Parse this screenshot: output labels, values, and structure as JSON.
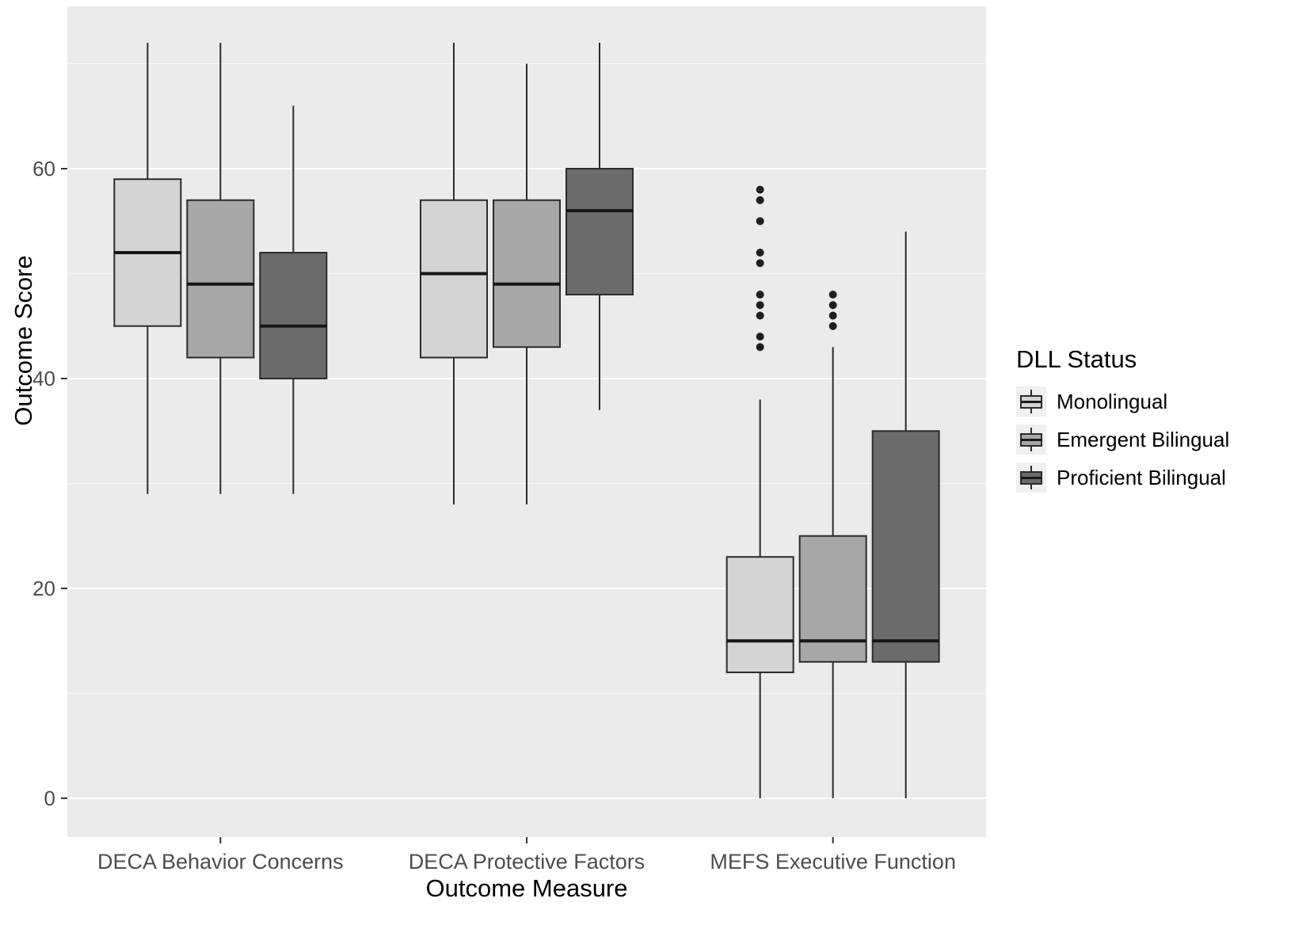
{
  "chart_data": {
    "type": "boxplot",
    "title": "",
    "xlabel": "Outcome Measure",
    "ylabel": "Outcome Score",
    "ylim": [
      -4,
      76
    ],
    "yticks": [
      0,
      20,
      40,
      60
    ],
    "grid": "on",
    "panel_background": "#ebebeb",
    "gridline_color": "#ffffff",
    "categories": [
      "DECA Behavior Concerns",
      "DECA Protective Factors",
      "MEFS Executive Function"
    ],
    "legend": {
      "title": "DLL Status",
      "position": "right"
    },
    "series": [
      {
        "name": "Monolingual",
        "color": "#d4d4d4",
        "boxes": [
          {
            "low": 29,
            "q1": 45,
            "median": 52,
            "q3": 59,
            "high": 72,
            "outliers": []
          },
          {
            "low": 28,
            "q1": 42,
            "median": 50,
            "q3": 57,
            "high": 72,
            "outliers": []
          },
          {
            "low": 0,
            "q1": 12,
            "median": 15,
            "q3": 23,
            "high": 38,
            "outliers": [
              58,
              57,
              55,
              52,
              51,
              48,
              47,
              46,
              44,
              43
            ]
          }
        ]
      },
      {
        "name": "Emergent Bilingual",
        "color": "#a7a7a7",
        "boxes": [
          {
            "low": 29,
            "q1": 42,
            "median": 49,
            "q3": 57,
            "high": 72,
            "outliers": []
          },
          {
            "low": 28,
            "q1": 43,
            "median": 49,
            "q3": 57,
            "high": 70,
            "outliers": []
          },
          {
            "low": 0,
            "q1": 13,
            "median": 15,
            "q3": 25,
            "high": 43,
            "outliers": [
              48,
              47,
              46,
              45
            ]
          }
        ]
      },
      {
        "name": "Proficient Bilingual",
        "color": "#6b6b6b",
        "boxes": [
          {
            "low": 29,
            "q1": 40,
            "median": 45,
            "q3": 52,
            "high": 66,
            "outliers": []
          },
          {
            "low": 37,
            "q1": 48,
            "median": 56,
            "q3": 60,
            "high": 72,
            "outliers": []
          },
          {
            "low": 0,
            "q1": 13,
            "median": 15,
            "q3": 35,
            "high": 54,
            "outliers": []
          }
        ]
      }
    ]
  }
}
